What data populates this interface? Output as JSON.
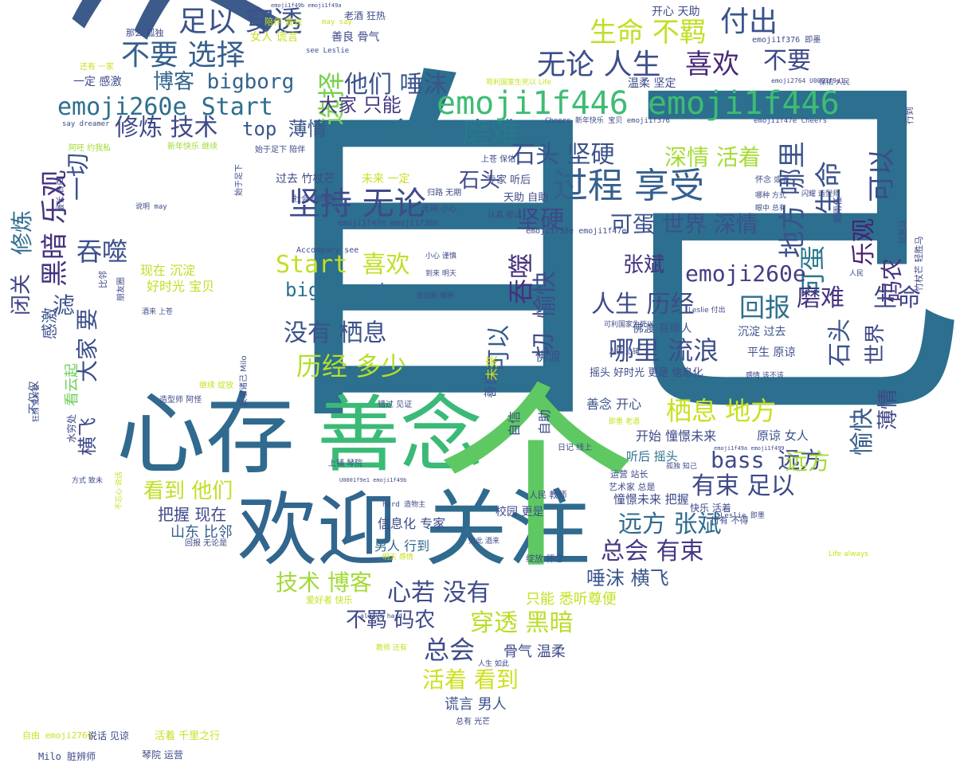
{
  "word_cloud": {
    "words": [
      {
        "text": "自己",
        "color": "#2c6f8e"
      },
      {
        "text": "没有",
        "color": "#3c5b8b"
      },
      {
        "text": "心存",
        "color": "#306a8e"
      },
      {
        "text": "善念",
        "color": "#3aba76"
      },
      {
        "text": "欢迎",
        "color": "#31668e"
      },
      {
        "text": "关注",
        "color": "#2f6b8e"
      },
      {
        "text": "个",
        "color": "#5ec962"
      },
      {
        "text": "emoji1f446 emoji1f446",
        "color": "#3dbc74"
      },
      {
        "text": "过程 享受",
        "color": "#35608d"
      },
      {
        "text": "坚持 无论",
        "color": "#3e4a89"
      },
      {
        "text": "足以 穿透",
        "color": "#3b528b"
      },
      {
        "text": "不要 选择",
        "color": "#355f8d"
      },
      {
        "text": "生命 不羁",
        "color": "#c0df25"
      },
      {
        "text": "付出",
        "color": "#3a548c"
      },
      {
        "text": "无论 人生",
        "color": "#3c4f8a"
      },
      {
        "text": "喜欢",
        "color": "#482878"
      },
      {
        "text": "不要",
        "color": "#3f4889"
      },
      {
        "text": "emoji260e Start",
        "color": "#2e6e8e"
      },
      {
        "text": "博客 bigborg",
        "color": "#33638d"
      },
      {
        "text": "他们 唾沫",
        "color": "#3b528b"
      },
      {
        "text": "选择",
        "color": "#7ad151"
      },
      {
        "text": "修炼 技术",
        "color": "#3e4989"
      },
      {
        "text": "大家 只能",
        "color": "#443983"
      },
      {
        "text": "多少",
        "color": "#2d708e"
      },
      {
        "text": "磨难",
        "color": "#2a788e"
      },
      {
        "text": "top 薄情",
        "color": "#39558c"
      },
      {
        "text": "石头 坚硬",
        "color": "#3b518b"
      },
      {
        "text": "深情 活着",
        "color": "#a5db36"
      },
      {
        "text": "生命",
        "color": "#3b528b"
      },
      {
        "text": "可以",
        "color": "#3e4a89"
      },
      {
        "text": "地方 哪里",
        "color": "#3b518b"
      },
      {
        "text": "乐观",
        "color": "#482173"
      },
      {
        "text": "码农",
        "color": "#472f7d"
      },
      {
        "text": "可蛋",
        "color": "#2a788e"
      },
      {
        "text": "坚硬",
        "color": "#3f4788"
      },
      {
        "text": "可蛋 世界 深情",
        "color": "#3b518b"
      },
      {
        "text": "黑暗 乐观",
        "color": "#46327e"
      },
      {
        "text": "一切",
        "color": "#3c508b"
      },
      {
        "text": "修炼",
        "color": "#2f6c8e"
      },
      {
        "text": "吞噬",
        "color": "#3c4f8a"
      },
      {
        "text": "Start 喜欢",
        "color": "#c2df23"
      },
      {
        "text": "bigborg top",
        "color": "#2c728e"
      },
      {
        "text": "吞噬",
        "color": "#46307e"
      },
      {
        "text": "愉快",
        "color": "#3e4c8a"
      },
      {
        "text": "张斌",
        "color": "#46327e"
      },
      {
        "text": "emoji260e",
        "color": "#433e85"
      },
      {
        "text": "人生 历经",
        "color": "#3e4c8a"
      },
      {
        "text": "回报",
        "color": "#2e6f8e"
      },
      {
        "text": "磨难",
        "color": "#463480"
      },
      {
        "text": "生命",
        "color": "#414487"
      },
      {
        "text": "石头",
        "color": "#3b528b"
      },
      {
        "text": "世界",
        "color": "#3e4a89"
      },
      {
        "text": "没有 栖息",
        "color": "#3b528b"
      },
      {
        "text": "历经 多少",
        "color": "#b5de2b"
      },
      {
        "text": "哪里 流浪",
        "color": "#3d4d8a"
      },
      {
        "text": "切",
        "color": "#3e4a89"
      },
      {
        "text": "可以",
        "color": "#355e8d"
      },
      {
        "text": "滤",
        "color": "#3b518b"
      },
      {
        "text": "大家 要",
        "color": "#3c4f8a"
      },
      {
        "text": "横飞",
        "color": "#3e4a89"
      },
      {
        "text": "栖息 地方",
        "color": "#c8e020"
      },
      {
        "text": "bass 远方",
        "color": "#3e4a89"
      },
      {
        "text": "远方",
        "color": "#a8db34"
      },
      {
        "text": "愉快",
        "color": "#365c8d"
      },
      {
        "text": "薄情",
        "color": "#3f4788"
      },
      {
        "text": "有束 足以",
        "color": "#3e4a89"
      },
      {
        "text": "远方 张斌",
        "color": "#306a8e"
      },
      {
        "text": "总会 有束",
        "color": "#443a83"
      },
      {
        "text": "唾沫 横飞",
        "color": "#39568c"
      },
      {
        "text": "心若 没有",
        "color": "#3e4c8a"
      },
      {
        "text": "技术 博客",
        "color": "#a2da37"
      },
      {
        "text": "不羁 码农",
        "color": "#3f4889"
      },
      {
        "text": "穿透 黑暗",
        "color": "#b8de29"
      },
      {
        "text": "总会",
        "color": "#3e4c8a"
      },
      {
        "text": "活着 看到",
        "color": "#cde11d"
      },
      {
        "text": "看到 他们",
        "color": "#c0df25"
      },
      {
        "text": "把握 现在",
        "color": "#3e4a89"
      },
      {
        "text": "山东 比邻",
        "color": "#355f8d"
      },
      {
        "text": "信息化 专家",
        "color": "#3e4a89"
      },
      {
        "text": "男人 行到",
        "color": "#31688e"
      },
      {
        "text": "谎言 男人",
        "color": "#3b528b"
      },
      {
        "text": "骨气 温柔",
        "color": "#3e4c8a"
      },
      {
        "text": "只能 悉听尊便",
        "color": "#c5e021"
      },
      {
        "text": "闭关",
        "color": "#414487"
      },
      {
        "text": "感激",
        "color": "#3b528b"
      },
      {
        "text": "现在 沉淀",
        "color": "#bddf26"
      },
      {
        "text": "好时光 宝贝",
        "color": "#c0df25"
      },
      {
        "text": "看云起",
        "color": "#6ece58"
      },
      {
        "text": "不仅仅",
        "color": "#3b528b"
      },
      {
        "text": "开始 憧憬未来",
        "color": "#3e4a89"
      },
      {
        "text": "原谅 女人",
        "color": "#3b528b"
      },
      {
        "text": "善念 开心",
        "color": "#3b528b"
      },
      {
        "text": "听后 摇头",
        "color": "#2c718e"
      },
      {
        "text": "憧憬未来 把握",
        "color": "#3e4a89"
      },
      {
        "text": "校园 更是",
        "color": "#3e4a89"
      },
      {
        "text": "人民 教师",
        "color": "#3e4a89"
      },
      {
        "text": "运营 站长",
        "color": "#3e4a89"
      },
      {
        "text": "艺术家 总是",
        "color": "#3e4a89"
      },
      {
        "text": "快乐 活着",
        "color": "#3e4a89"
      },
      {
        "text": "行有 不得",
        "color": "#3e4a89"
      },
      {
        "text": "自信",
        "color": "#3e4a89"
      },
      {
        "text": "自助",
        "color": "#3e4a89"
      },
      {
        "text": "佛渡",
        "color": "#3b528b"
      },
      {
        "text": "善良",
        "color": "#3b528b"
      },
      {
        "text": "未来",
        "color": "#cde11d"
      },
      {
        "text": "摇头 好时光 更是 信息化",
        "color": "#3e4a89"
      },
      {
        "text": "平生 原谅",
        "color": "#3b528b"
      },
      {
        "text": "沉淀 过去",
        "color": "#3b528b"
      },
      {
        "text": "佛渡 有缘人",
        "color": "#3b528b"
      },
      {
        "text": "过去 竹杖芒",
        "color": "#3e4a89"
      },
      {
        "text": "未来 一定",
        "color": "#c8e020"
      },
      {
        "text": "石头",
        "color": "#3e4a89"
      },
      {
        "text": "天助 自助",
        "color": "#3e4a89"
      },
      {
        "text": "专家 听后",
        "color": "#3e4a89"
      },
      {
        "text": "上苍 保佑",
        "color": "#3e4a89"
      },
      {
        "text": "emoji1f47e emoji1f38e",
        "color": "#3e4a89"
      },
      {
        "text": "emoji1f38e emoji1f47e",
        "color": "#3e4a89"
      },
      {
        "text": "Accompany see",
        "color": "#3e4a89"
      },
      {
        "text": "开心 天助",
        "color": "#3e4a89"
      },
      {
        "text": "女人 谎言",
        "color": "#c8e020"
      },
      {
        "text": "善良 骨气",
        "color": "#3e4a89"
      },
      {
        "text": "一定 感激",
        "color": "#3e4a89"
      },
      {
        "text": "温柔 坚定",
        "color": "#3e4a89"
      },
      {
        "text": "老酒 狂热",
        "color": "#3e4a89"
      },
      {
        "text": "陪伴 最长",
        "color": "#c8e020"
      },
      {
        "text": "那么 孤独",
        "color": "#3e4a89"
      },
      {
        "text": "may say",
        "color": "#c8e020"
      },
      {
        "text": "emoji1f376 即墨",
        "color": "#3e4a89"
      },
      {
        "text": "emoji2764 U0001f9e1",
        "color": "#3e4a89"
      },
      {
        "text": "Cheers 新年快乐 宝贝 emoji1f376",
        "color": "#3e4a89"
      },
      {
        "text": "emoji1f47e Cheers",
        "color": "#3e4a89"
      },
      {
        "text": "say dreamer",
        "color": "#3e4a89"
      },
      {
        "text": "阿呸 约我私",
        "color": "#a2da37"
      },
      {
        "text": "新年快乐 继续",
        "color": "#a2da37"
      },
      {
        "text": "始于足下 陪伴",
        "color": "#3e4a89"
      },
      {
        "text": "始于足下",
        "color": "#3e4a89"
      },
      {
        "text": "还有 一家",
        "color": "#c8e020"
      },
      {
        "text": "苟利国家生死以 Life",
        "color": "#c8e020"
      },
      {
        "text": "emoji1f49b emoji1f49a",
        "color": "#3e4a89"
      },
      {
        "text": "归路 无期",
        "color": "#3e4a89"
      },
      {
        "text": "社会 副作用",
        "color": "#3e4a89"
      },
      {
        "text": "认真 那么",
        "color": "#3e4a89"
      },
      {
        "text": "无期 小心",
        "color": "#3e4a89"
      },
      {
        "text": "小心 谨慎",
        "color": "#3e4a89"
      },
      {
        "text": "到来 明天",
        "color": "#3e4a89"
      },
      {
        "text": "无论是 哪种",
        "color": "#3e4a89"
      },
      {
        "text": "说明 may",
        "color": "#3e4a89"
      },
      {
        "text": "最长 告白",
        "color": "#3e4a89"
      },
      {
        "text": "比邻",
        "color": "#3e4a89"
      },
      {
        "text": "朋友圈",
        "color": "#3e4a89"
      },
      {
        "text": "反求诸己 Milo",
        "color": "#3e4a89"
      },
      {
        "text": "造型师 阿怪",
        "color": "#3e4a89"
      },
      {
        "text": "继续 绽放",
        "color": "#c8e020"
      },
      {
        "text": "错过 见证",
        "color": "#3e4a89"
      },
      {
        "text": "上铺 琴院",
        "color": "#3e4a89"
      },
      {
        "text": "U0001f9e1 emoji1f49b",
        "color": "#3e4a89"
      },
      {
        "text": "hard 造物主",
        "color": "#3e4a89"
      },
      {
        "text": "如此 酒来",
        "color": "#3e4a89"
      },
      {
        "text": "明天 感情",
        "color": "#c8e020"
      },
      {
        "text": "绽放 怀念",
        "color": "#3e4a89"
      },
      {
        "text": "爱好者 快乐",
        "color": "#c8e020"
      },
      {
        "text": "always hard",
        "color": "#3e4a89"
      },
      {
        "text": "教师 还有",
        "color": "#c8e020"
      },
      {
        "text": "人生 如此",
        "color": "#3e4a89"
      },
      {
        "text": "总有 光芒",
        "color": "#3e4a89"
      },
      {
        "text": "日记 线上",
        "color": "#3e4a89"
      },
      {
        "text": "Life always",
        "color": "#c8e020"
      },
      {
        "text": "回报 无论是",
        "color": "#3e4a89"
      },
      {
        "text": "方式 致未",
        "color": "#3e4a89"
      },
      {
        "text": "酒来 上苍",
        "color": "#3e4a89"
      },
      {
        "text": "哪种 方式",
        "color": "#3e4a89"
      },
      {
        "text": "眼中 总有",
        "color": "#3e4a89"
      },
      {
        "text": "怀念 或者",
        "color": "#3e4a89"
      },
      {
        "text": "闪耀 造型师",
        "color": "#3e4a89"
      },
      {
        "text": "人民",
        "color": "#3e4a89"
      },
      {
        "text": "保佑 人民",
        "color": "#3e4a89"
      },
      {
        "text": "Leslie 付出",
        "color": "#3e4a89"
      },
      {
        "text": "感情 该不该",
        "color": "#3e4a89"
      },
      {
        "text": "人民 上铺",
        "color": "#3e4a89"
      },
      {
        "text": "可利国家生死以",
        "color": "#3e4a89"
      },
      {
        "text": "即墨 老酒",
        "color": "#c8e020"
      },
      {
        "text": "孤独 知己",
        "color": "#3e4a89"
      },
      {
        "text": "Leslie 即墨",
        "color": "#3e4a89"
      },
      {
        "text": "轻胜马",
        "color": "#3e4a89"
      },
      {
        "text": "烟雨任",
        "color": "#3e4a89"
      },
      {
        "text": "竹杖芒 轻胜马",
        "color": "#3e4a89"
      },
      {
        "text": "自由 emoji2764",
        "color": "#c8e020"
      },
      {
        "text": "说话 见谅",
        "color": "#3e4a89"
      },
      {
        "text": "活着 千里之行",
        "color": "#c8e020"
      },
      {
        "text": "Milo 脏辨师",
        "color": "#3e4a89"
      },
      {
        "text": "琴院 运营",
        "color": "#3e4a89"
      },
      {
        "text": "see Leslie",
        "color": "#3e4a89"
      },
      {
        "text": "emoji1f49a emoji1f499",
        "color": "#3e4a89"
      },
      {
        "text": "狂热 爱好者",
        "color": "#3e4a89"
      },
      {
        "text": "水穷处",
        "color": "#3e4a89"
      },
      {
        "text": "不忘心 说话",
        "color": "#c8e020"
      },
      {
        "text": "行到",
        "color": "#3e4a89"
      }
    ]
  }
}
